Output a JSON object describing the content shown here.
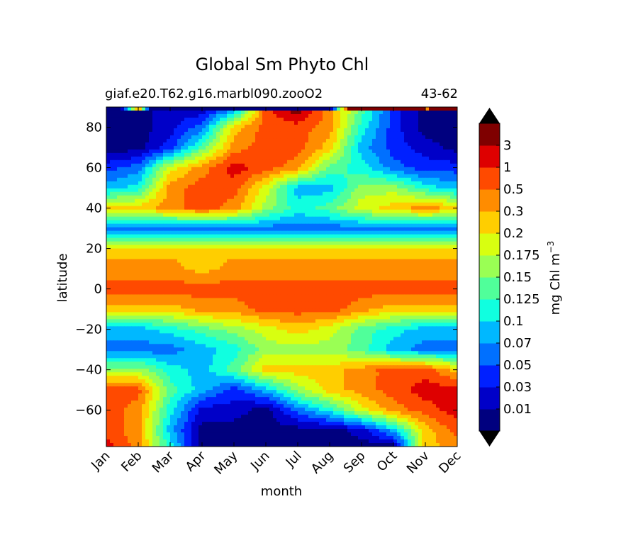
{
  "chart_data": {
    "type": "heatmap",
    "title": "Global Sm Phyto Chl",
    "subtitle_left": "giaf.e20.T62.g16.marbl090.zooO2",
    "subtitle_right": "43-62",
    "xlabel": "month",
    "ylabel": "latitude",
    "x_ticks": [
      "Jan",
      "Feb",
      "Mar",
      "Apr",
      "May",
      "Jun",
      "Jul",
      "Aug",
      "Sep",
      "Oct",
      "Nov",
      "Dec"
    ],
    "y_ticks": [
      80,
      60,
      40,
      20,
      0,
      -20,
      -40,
      -60
    ],
    "ylim": [
      -78,
      90
    ],
    "colorbar": {
      "label": "mg Chl m",
      "label_exponent": "−3",
      "extend": "both",
      "tick_labels": [
        "0.01",
        "0.03",
        "0.05",
        "0.07",
        "0.1",
        "0.125",
        "0.15",
        "0.175",
        "0.2",
        "0.3",
        "0.5",
        "1",
        "3"
      ],
      "colors": [
        "#00007f",
        "#0000c8",
        "#0020ff",
        "#0070ff",
        "#00b8ff",
        "#10ffe0",
        "#50ff9a",
        "#9aff54",
        "#d8ff10",
        "#ffce00",
        "#ff8c00",
        "#ff4a00",
        "#de0000",
        "#7f0000"
      ],
      "under_color": "#000000",
      "over_color": "#000000"
    },
    "latitudes": [
      88,
      80,
      70,
      60,
      50,
      40,
      30,
      25,
      20,
      10,
      0,
      -10,
      -20,
      -30,
      -40,
      -50,
      -60,
      -70,
      -78
    ],
    "values_level_index": [
      [
        0,
        0,
        1,
        1,
        4,
        11,
        13,
        10,
        6,
        2,
        0,
        0
      ],
      [
        0,
        0,
        1,
        3,
        9,
        11,
        11,
        10,
        5,
        2,
        0,
        0
      ],
      [
        0,
        0,
        2,
        6,
        10,
        11,
        11,
        9,
        4,
        2,
        1,
        0
      ],
      [
        2,
        3,
        8,
        10,
        12,
        11,
        10,
        6,
        5,
        3,
        2,
        2
      ],
      [
        4,
        5,
        10,
        11,
        11,
        8,
        4,
        4,
        7,
        7,
        5,
        4
      ],
      [
        9,
        9,
        10,
        11,
        10,
        7,
        5,
        6,
        8,
        9,
        10,
        9
      ],
      [
        3,
        3,
        3,
        3,
        3,
        3,
        3,
        3,
        3,
        3,
        3,
        3
      ],
      [
        5,
        5,
        5,
        5,
        5,
        5,
        5,
        5,
        5,
        5,
        5,
        5
      ],
      [
        9,
        9,
        9,
        9,
        9,
        9,
        9,
        9,
        9,
        9,
        9,
        9
      ],
      [
        10,
        10,
        10,
        9,
        10,
        10,
        10,
        10,
        10,
        10,
        10,
        10
      ],
      [
        11,
        11,
        11,
        11,
        11,
        11,
        11,
        11,
        11,
        11,
        11,
        11
      ],
      [
        9,
        9,
        9,
        10,
        10,
        11,
        11,
        11,
        10,
        9,
        9,
        9
      ],
      [
        4,
        4,
        5,
        6,
        7,
        8,
        9,
        8,
        6,
        5,
        4,
        4
      ],
      [
        3,
        3,
        3,
        4,
        5,
        7,
        7,
        7,
        6,
        4,
        3,
        3
      ],
      [
        7,
        7,
        5,
        4,
        6,
        9,
        9,
        9,
        10,
        11,
        11,
        9
      ],
      [
        11,
        11,
        6,
        4,
        2,
        4,
        7,
        9,
        10,
        11,
        12,
        12
      ],
      [
        11,
        10,
        5,
        1,
        1,
        0,
        3,
        5,
        8,
        10,
        11,
        12
      ],
      [
        11,
        10,
        4,
        0,
        0,
        0,
        0,
        0,
        1,
        4,
        9,
        11
      ],
      [
        12,
        10,
        5,
        0,
        0,
        0,
        0,
        0,
        0,
        0,
        9,
        10
      ]
    ]
  }
}
